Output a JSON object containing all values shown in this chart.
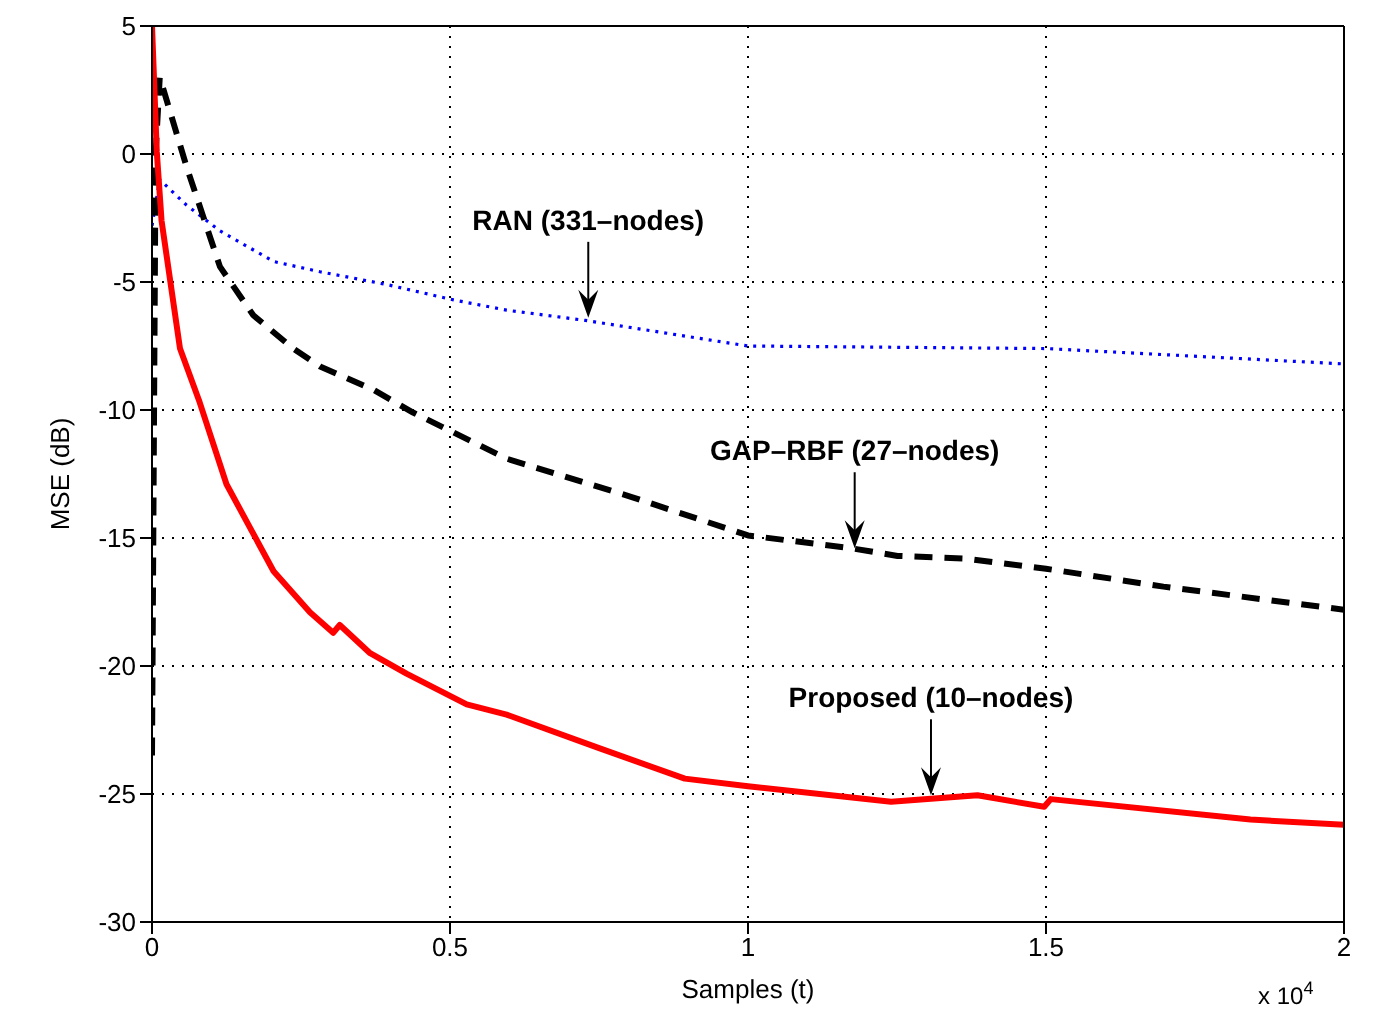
{
  "chart_data": {
    "type": "line",
    "xlabel": "Samples (t)",
    "ylabel": "MSE (dB)",
    "xlim": [
      0,
      2
    ],
    "xticks": [
      0,
      0.5,
      1,
      1.5,
      2
    ],
    "ylim": [
      -30,
      5
    ],
    "yticks": [
      -30,
      -25,
      -20,
      -15,
      -10,
      -5,
      0,
      5
    ],
    "grid": true,
    "marker": "none",
    "series": [
      {
        "color": "#0000ff",
        "line_style": "dotted",
        "x": [
          0,
          0.013,
          0.058,
          0.114,
          0.204,
          0.282,
          0.394,
          0.506,
          0.595,
          0.727,
          1.0,
          1.5,
          2.0
        ],
        "values": [
          -2.8,
          -1.0,
          -2.0,
          -3.0,
          -4.2,
          -4.6,
          -5.1,
          -5.7,
          -6.1,
          -6.5,
          -7.5,
          -7.6,
          -8.2
        ]
      },
      {
        "color": "#000000",
        "line_style": "dashed",
        "x": [
          0,
          0.006,
          0.013,
          0.058,
          0.114,
          0.17,
          0.237,
          0.282,
          0.371,
          0.438,
          0.595,
          0.805,
          1.0,
          1.173,
          1.251,
          1.363,
          1.5,
          1.697,
          2.0
        ],
        "values": [
          -23.5,
          0,
          3.0,
          -0.5,
          -4.4,
          -6.3,
          -7.6,
          -8.3,
          -9.2,
          -10.1,
          -11.9,
          -13.4,
          -14.9,
          -15.4,
          -15.7,
          -15.8,
          -16.2,
          -16.9,
          -17.8
        ]
      },
      {
        "color": "#ff0000",
        "line_style": "solid",
        "x": [
          0,
          0.008,
          0.016,
          0.047,
          0.08,
          0.125,
          0.204,
          0.265,
          0.304,
          0.315,
          0.366,
          0.427,
          0.528,
          0.595,
          0.749,
          0.894,
          1.0,
          1.24,
          1.385,
          1.497,
          1.508,
          1.843,
          2.0
        ],
        "values": [
          5,
          0.1,
          -2.6,
          -7.6,
          -9.7,
          -12.9,
          -16.3,
          -17.9,
          -18.7,
          -18.4,
          -19.5,
          -20.3,
          -21.5,
          -21.9,
          -23.2,
          -24.4,
          -24.7,
          -25.3,
          -25.05,
          -25.5,
          -25.2,
          -26.0,
          -26.2
        ]
      }
    ],
    "annotations": [
      {
        "text": "RAN (331–nodes)",
        "x": 0.732,
        "y": -6.4
      },
      {
        "text": "GAP–RBF (27–nodes)",
        "x": 1.179,
        "y": -15.4
      },
      {
        "text": "Proposed (10–nodes)",
        "x": 1.307,
        "y": -25.05
      },
      "x 10$^{4}$"
    ]
  }
}
